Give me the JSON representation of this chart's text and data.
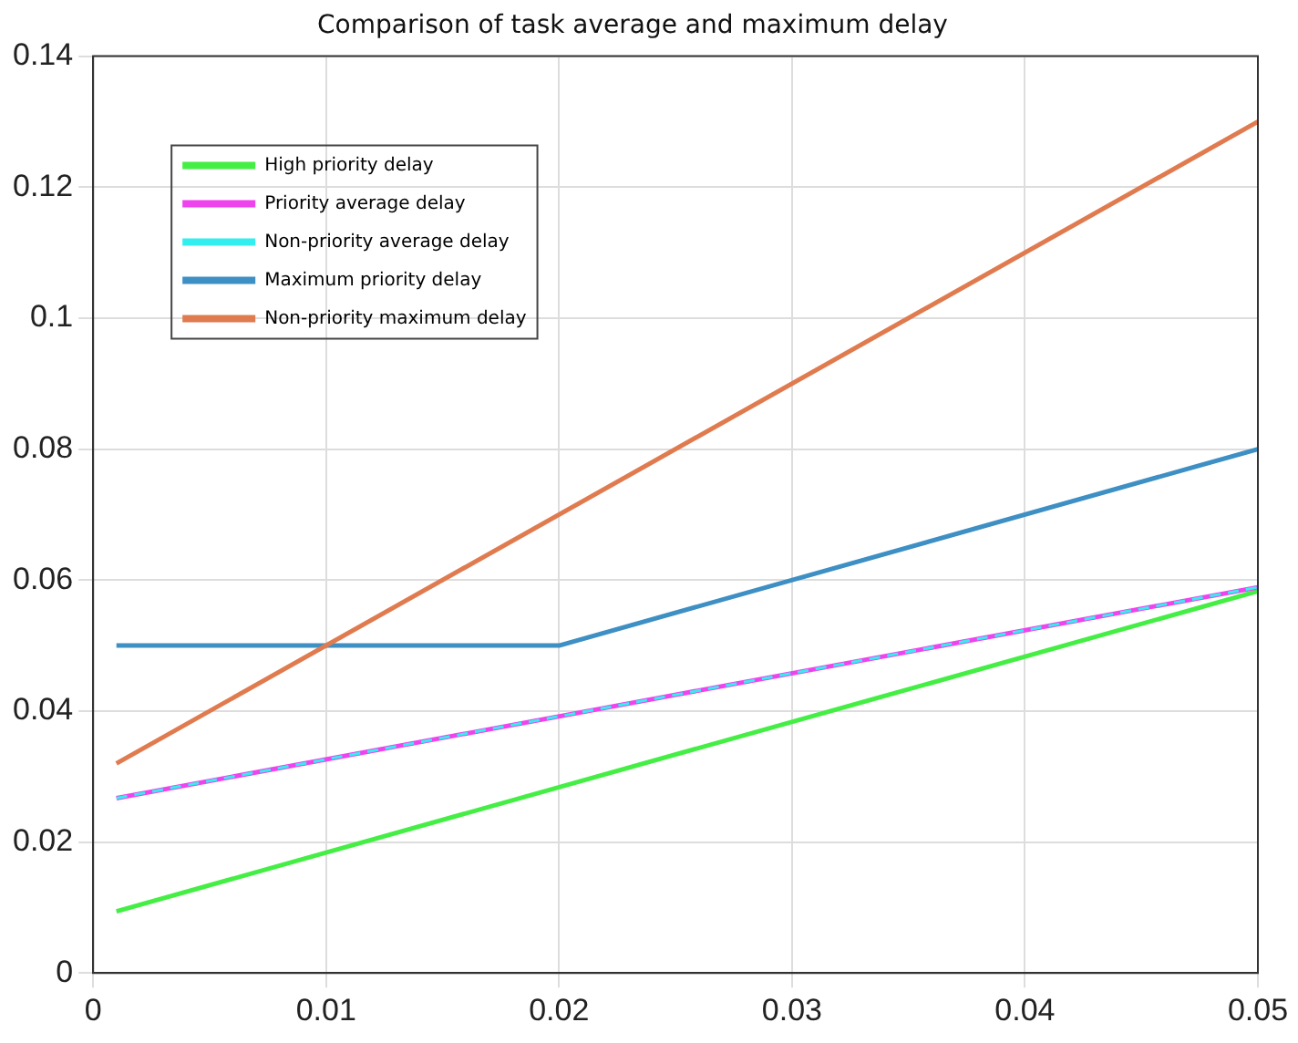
{
  "chart_data": {
    "type": "line",
    "title": "Comparison of task average and maximum delay",
    "xlim": [
      0,
      0.05
    ],
    "xticks": [
      0,
      0.01,
      0.02,
      0.03,
      0.04,
      0.05
    ],
    "ylim": [
      0,
      0.14
    ],
    "yticks": [
      0,
      0.02,
      0.04,
      0.06,
      0.08,
      0.1,
      0.12,
      0.14
    ],
    "grid": true,
    "legend": "top left",
    "marker": "none",
    "series": [
      {
        "name": "High priority delay",
        "color": "#44ee44",
        "x": [
          0.001,
          0.05
        ],
        "values": [
          0.0094,
          0.0583
        ]
      },
      {
        "name": "Priority average delay",
        "color": "#ee44ee",
        "x": [
          0.001,
          0.05
        ],
        "values": [
          0.0267,
          0.0589
        ]
      },
      {
        "name": "Non-priority average delay",
        "color": "#33eeee",
        "line_style": "dashed",
        "x": [
          0.001,
          0.05
        ],
        "values": [
          0.0267,
          0.0589
        ]
      },
      {
        "name": "Maximum priority delay",
        "color": "#3d8fc4",
        "x": [
          0.001,
          0.02,
          0.05
        ],
        "values": [
          0.05,
          0.05,
          0.08
        ]
      },
      {
        "name": "Non-priority maximum delay",
        "color": "#e07b4f",
        "x": [
          0.001,
          0.05
        ],
        "values": [
          0.032,
          0.13
        ]
      }
    ]
  }
}
